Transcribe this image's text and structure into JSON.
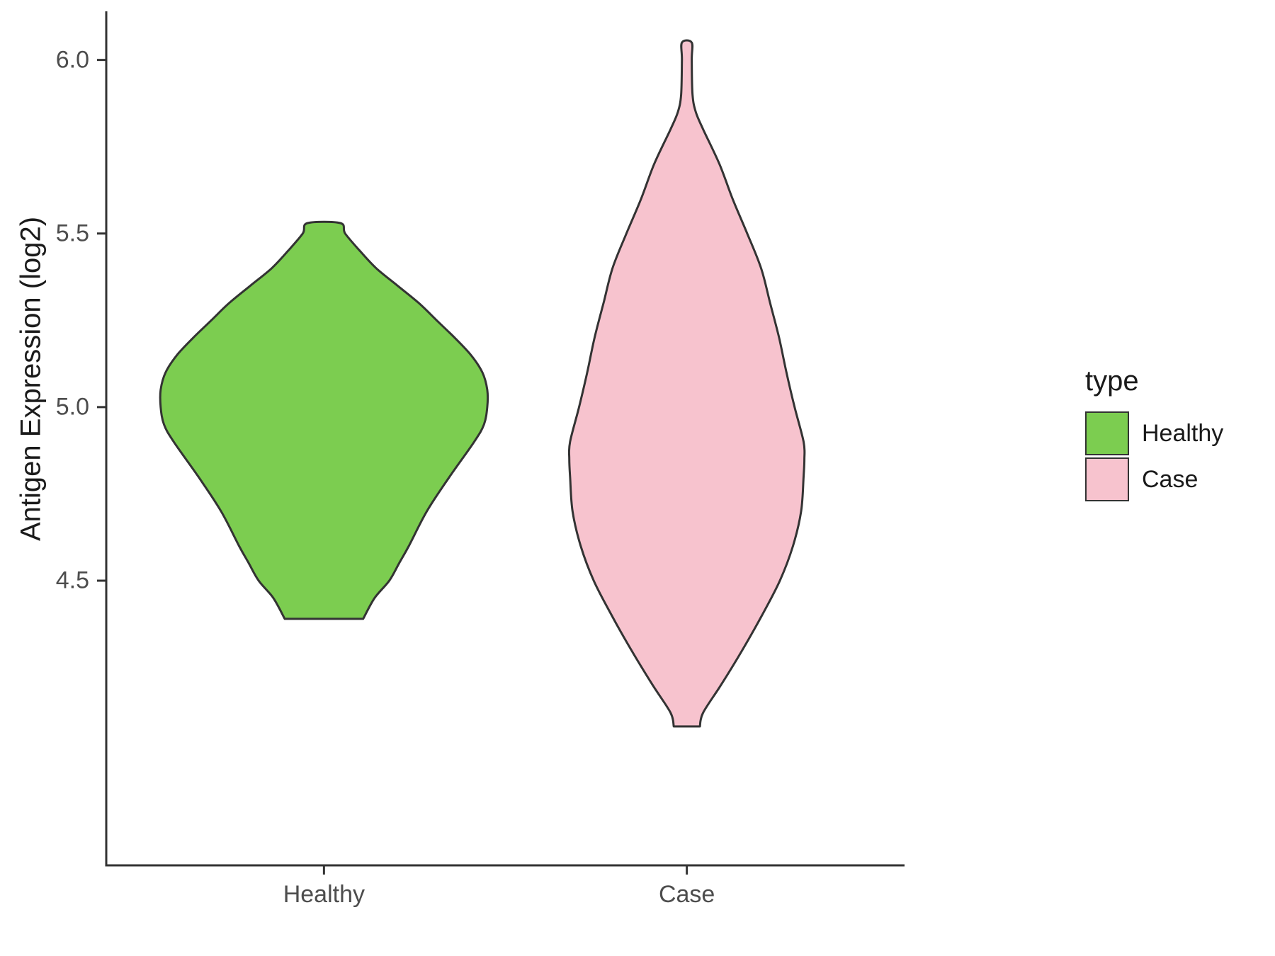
{
  "chart_data": {
    "type": "violin",
    "title": "",
    "xlabel": "",
    "ylabel": "Antigen Expression (log2)",
    "categories": [
      "Healthy",
      "Case"
    ],
    "yticks": [
      4.5,
      5.0,
      5.5,
      6.0
    ],
    "ytick_labels": [
      "4.5",
      "5.0",
      "5.5",
      "6.0"
    ],
    "ylim": [
      3.68,
      6.14
    ],
    "grid": false,
    "axis_color": "#333333",
    "legend": {
      "title": "type",
      "position": "right",
      "entries": [
        {
          "label": "Healthy",
          "color": "#7CCD50"
        },
        {
          "label": "Case",
          "color": "#F7C3CE"
        }
      ]
    },
    "series": [
      {
        "name": "Healthy",
        "fill": "#7CCD50",
        "outline": "#333333",
        "value_range": [
          4.39,
          5.53
        ],
        "profile": [
          [
            4.39,
            0.24
          ],
          [
            4.45,
            0.31
          ],
          [
            4.5,
            0.4
          ],
          [
            4.55,
            0.46
          ],
          [
            4.6,
            0.52
          ],
          [
            4.7,
            0.63
          ],
          [
            4.8,
            0.77
          ],
          [
            4.9,
            0.92
          ],
          [
            4.95,
            0.98
          ],
          [
            5.0,
            1.0
          ],
          [
            5.05,
            1.0
          ],
          [
            5.1,
            0.97
          ],
          [
            5.15,
            0.9
          ],
          [
            5.2,
            0.8
          ],
          [
            5.25,
            0.69
          ],
          [
            5.3,
            0.58
          ],
          [
            5.35,
            0.45
          ],
          [
            5.4,
            0.32
          ],
          [
            5.45,
            0.22
          ],
          [
            5.5,
            0.13
          ],
          [
            5.53,
            0.1
          ]
        ]
      },
      {
        "name": "Case",
        "fill": "#F7C3CE",
        "outline": "#333333",
        "value_range": [
          4.08,
          6.05
        ],
        "profile": [
          [
            4.08,
            0.08
          ],
          [
            4.12,
            0.1
          ],
          [
            4.2,
            0.21
          ],
          [
            4.3,
            0.34
          ],
          [
            4.4,
            0.46
          ],
          [
            4.5,
            0.57
          ],
          [
            4.6,
            0.65
          ],
          [
            4.7,
            0.7
          ],
          [
            4.8,
            0.715
          ],
          [
            4.85,
            0.72
          ],
          [
            4.9,
            0.715
          ],
          [
            5.0,
            0.66
          ],
          [
            5.1,
            0.61
          ],
          [
            5.2,
            0.565
          ],
          [
            5.3,
            0.51
          ],
          [
            5.4,
            0.455
          ],
          [
            5.5,
            0.37
          ],
          [
            5.6,
            0.28
          ],
          [
            5.7,
            0.2
          ],
          [
            5.8,
            0.1
          ],
          [
            5.85,
            0.055
          ],
          [
            5.9,
            0.035
          ],
          [
            6.0,
            0.03
          ],
          [
            6.05,
            0.03
          ]
        ]
      }
    ]
  }
}
